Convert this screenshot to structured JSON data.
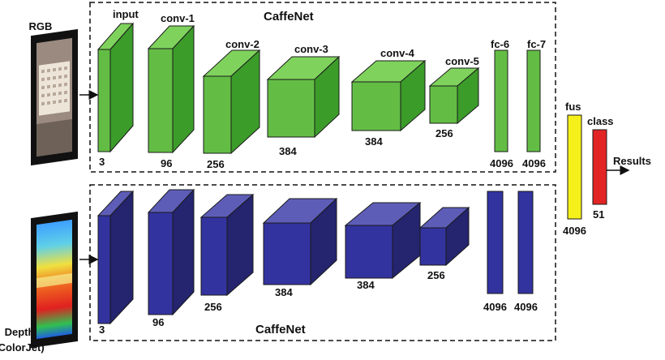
{
  "colors": {
    "green_front": "#63bd45",
    "green_top": "#7fd35d",
    "green_side": "#3c9c2a",
    "blue_front": "#3333a0",
    "blue_top": "#5d5db8",
    "blue_side": "#24246f",
    "yellow": "#f6f01a",
    "red": "#e32424",
    "stroke": "#1a1a1a"
  },
  "inputs": {
    "rgb_label": "RGB",
    "depth_label_line1": "Depth",
    "depth_label_line2": "(ColorJet)"
  },
  "top_stream": {
    "title": "CaffeNet",
    "layers": [
      {
        "name": "input",
        "size": "3"
      },
      {
        "name": "conv-1",
        "size": "96"
      },
      {
        "name": "conv-2",
        "size": "256"
      },
      {
        "name": "conv-3",
        "size": "384"
      },
      {
        "name": "conv-4",
        "size": "384"
      },
      {
        "name": "conv-5",
        "size": "256"
      },
      {
        "name": "fc-6",
        "size": "4096"
      },
      {
        "name": "fc-7",
        "size": "4096"
      }
    ]
  },
  "bottom_stream": {
    "title": "CaffeNet",
    "layers": [
      {
        "size": "3"
      },
      {
        "size": "96"
      },
      {
        "size": "256"
      },
      {
        "size": "384"
      },
      {
        "size": "384"
      },
      {
        "size": "256"
      },
      {
        "size": "4096"
      },
      {
        "size": "4096"
      }
    ]
  },
  "fusion": {
    "fus_label": "fus",
    "fus_size": "4096",
    "class_label": "class",
    "class_size": "51",
    "results_label": "Results"
  }
}
